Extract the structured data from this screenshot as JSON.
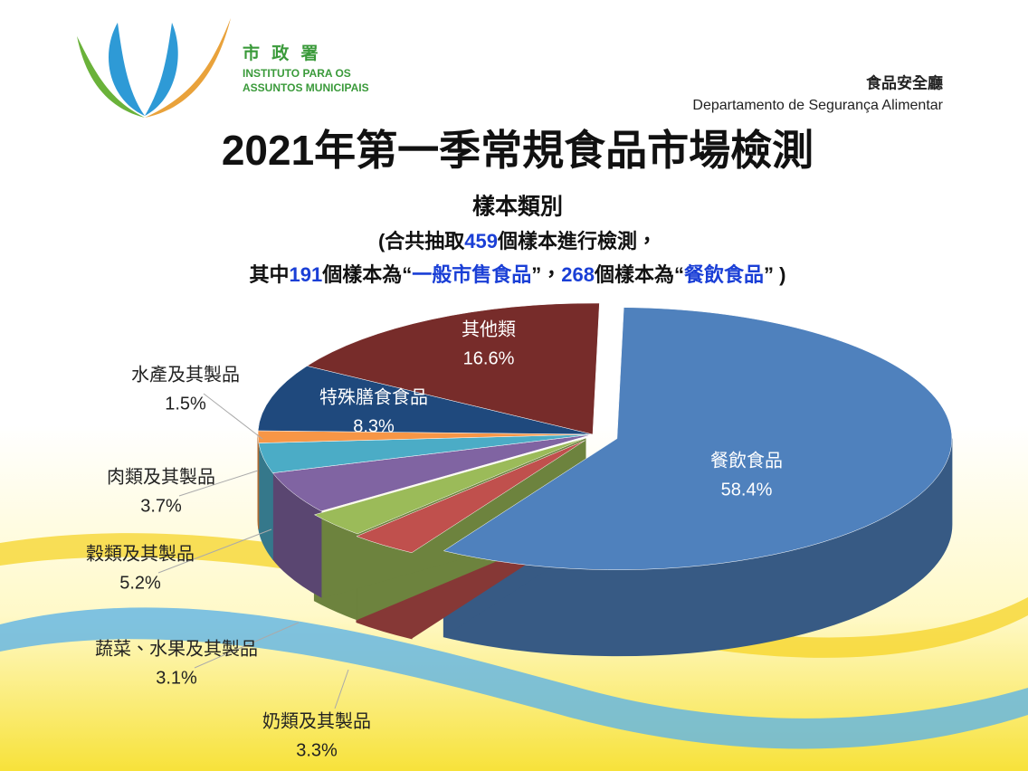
{
  "header": {
    "logo_name": "市 政 署",
    "logo_line1": "INSTITUTO PARA OS",
    "logo_line2": "ASSUNTOS MUNICIPAIS",
    "dept_zh": "食品安全廳",
    "dept_pt": "Departamento de Segurança Alimentar"
  },
  "chart_data": {
    "type": "pie",
    "title": "2021年第一季常規食品市場檢測",
    "subtitle": "樣本類別",
    "note": [
      [
        "(合共抽取",
        "459",
        "個樣本進行檢測，"
      ],
      [
        "其中",
        "191",
        "個樣本為“",
        "一般市售食品",
        "”，",
        "268",
        "個樣本為“",
        "餐飲食品",
        "” )"
      ]
    ],
    "categories": [
      "餐飲食品",
      "奶類及其製品",
      "蔬菜、水果及其製品",
      "穀類及其製品",
      "肉類及其製品",
      "水產及其製品",
      "特殊膳食食品",
      "其他類"
    ],
    "values": [
      58.4,
      3.3,
      3.1,
      5.2,
      3.7,
      1.5,
      8.3,
      16.6
    ],
    "value_labels": [
      "58.4%",
      "3.3%",
      "3.1%",
      "5.2%",
      "3.7%",
      "1.5%",
      "8.3%",
      "16.6%"
    ],
    "colors": [
      "#4f81bd",
      "#c0504d",
      "#9bbb59",
      "#8064a2",
      "#4bacc6",
      "#f79646",
      "#1f497d",
      "#772c2a"
    ]
  }
}
